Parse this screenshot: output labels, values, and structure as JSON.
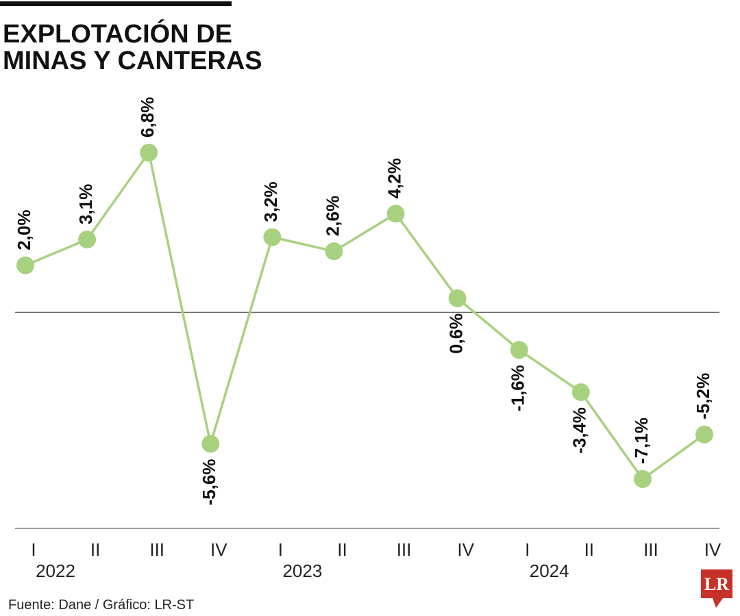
{
  "chart_data": {
    "type": "line",
    "title": [
      "EXPLOTACIÓN DE",
      "MINAS Y CANTERAS"
    ],
    "categories": [
      "I",
      "II",
      "III",
      "IV",
      "I",
      "II",
      "III",
      "IV",
      "I",
      "II",
      "III",
      "IV"
    ],
    "years": [
      "2022",
      "2023",
      "2024"
    ],
    "series": [
      {
        "name": "Explotación de minas y canteras",
        "color": "#a8d17f",
        "values": [
          2.0,
          3.1,
          6.8,
          -5.6,
          3.2,
          2.6,
          4.2,
          0.6,
          -1.6,
          -3.4,
          -7.1,
          -5.2
        ],
        "value_labels": [
          "2,0%",
          "3,1%",
          "6,8%",
          "-5,6%",
          "3,2%",
          "2,6%",
          "4,2%",
          "0,6%",
          "-1,6%",
          "-3,4%",
          "-7,1%",
          "-5,2%"
        ]
      }
    ],
    "ylim": [
      -9.2,
      9.8
    ],
    "baseline": 0,
    "source": "Fuente: Dane / Gráfico: LR-ST",
    "logo": "LR"
  }
}
